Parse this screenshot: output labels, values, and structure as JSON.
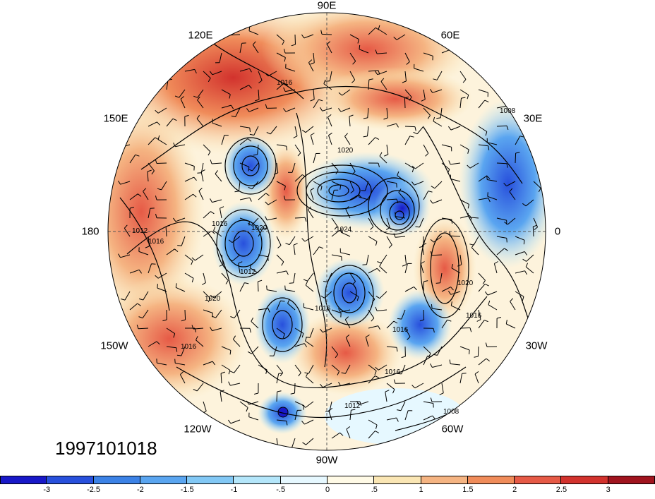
{
  "map": {
    "timestamp": "1997101018",
    "longitude_labels": [
      {
        "text": "90E",
        "name": "lon-label-90e"
      },
      {
        "text": "60E",
        "name": "lon-label-60e"
      },
      {
        "text": "120E",
        "name": "lon-label-120e"
      },
      {
        "text": "30E",
        "name": "lon-label-30e"
      },
      {
        "text": "150E",
        "name": "lon-label-150e"
      },
      {
        "text": "180",
        "name": "lon-label-180"
      },
      {
        "text": "0",
        "name": "lon-label-0"
      },
      {
        "text": "150W",
        "name": "lon-label-150w"
      },
      {
        "text": "30W",
        "name": "lon-label-30w"
      },
      {
        "text": "120W",
        "name": "lon-label-120w"
      },
      {
        "text": "60W",
        "name": "lon-label-60w"
      },
      {
        "text": "90W",
        "name": "lon-label-90w"
      }
    ],
    "contour_labels": [
      "1016",
      "1008",
      "1020",
      "1012",
      "1016",
      "1016",
      "1020",
      "1012",
      "1020",
      "1024",
      "1016",
      "1016",
      "1016",
      "1020",
      "1016",
      "1012",
      "1008",
      "1016"
    ],
    "projection": "polar stereographic (north pole)",
    "shading_variable_colors": {
      "negative_strong": "#1e1ec8",
      "neutral": "#ffffff",
      "positive_strong": "#a0141e"
    }
  },
  "colorbar": {
    "levels": [
      "-3",
      "-2.5",
      "-2",
      "-1.5",
      "-1",
      "-.5",
      "0",
      ".5",
      "1",
      "1.5",
      "2",
      "2.5",
      "3"
    ],
    "colors": [
      "#1818c8",
      "#2850dc",
      "#3c82e6",
      "#5aa5f0",
      "#82c8f5",
      "#b4e6fa",
      "#e6f8ff",
      "#fffae6",
      "#fae6b4",
      "#f5b482",
      "#f08c5a",
      "#e65a46",
      "#d2322d",
      "#a0141e"
    ]
  }
}
